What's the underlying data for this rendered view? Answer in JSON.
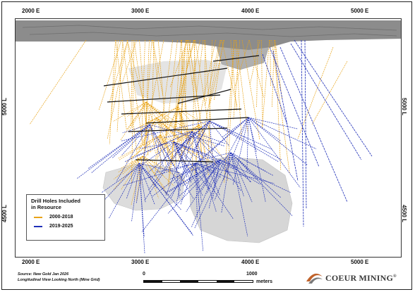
{
  "map": {
    "x_ticks": [
      "2000 E",
      "3000 E",
      "4000 E",
      "5000 E"
    ],
    "y_ticks": [
      "5000 L",
      "4500 L"
    ]
  },
  "legend": {
    "title_line1": "Drill Holes Included",
    "title_line2": "in Resource",
    "items": [
      {
        "label": "2000-2018",
        "color": "#e8a317"
      },
      {
        "label": "2019-2025",
        "color": "#1f2fb8"
      }
    ]
  },
  "source": {
    "line1": "Source: New Gold Jan 2026",
    "line2": "Longitudinal View Looking North (Mine Grid)"
  },
  "scale": {
    "start": "0",
    "end": "1000",
    "unit": "meters"
  },
  "logo": {
    "text": "COEUR MINING",
    "mark": "®"
  },
  "colors": {
    "drill_old": "#e8a317",
    "drill_new": "#1f2fb8",
    "surface": "#8c8c8c",
    "solid": "#d9d9d9"
  }
}
